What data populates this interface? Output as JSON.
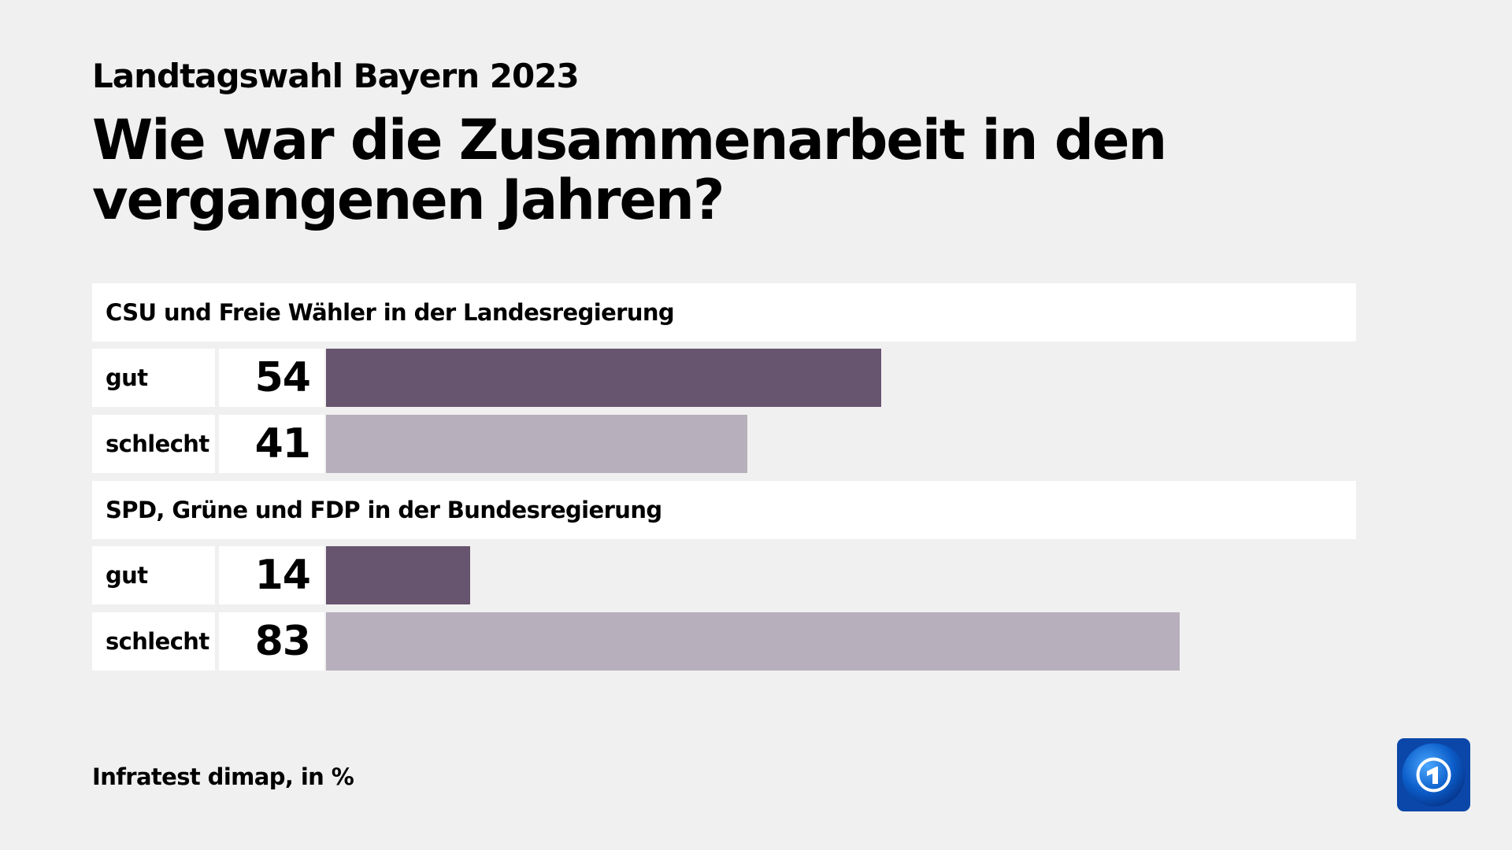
{
  "chart_data": {
    "type": "bar",
    "orientation": "horizontal",
    "subtitle": "Landtagswahl Bayern 2023",
    "title": "Wie war die Zusammenarbeit in den vergangenen Jahren?",
    "xlim": [
      0,
      100
    ],
    "groups": [
      {
        "label": "CSU und Freie Wähler in der Landesregierung",
        "rows": [
          {
            "label": "gut",
            "value": 54
          },
          {
            "label": "schlecht",
            "value": 41
          }
        ]
      },
      {
        "label": "SPD, Grüne und FDP in der Bundesregierung",
        "rows": [
          {
            "label": "gut",
            "value": 14
          },
          {
            "label": "schlecht",
            "value": 83
          }
        ]
      }
    ],
    "colors": {
      "gut": "#67546f",
      "schlecht": "#b7afbb"
    },
    "source": "Infratest dimap, in %"
  },
  "logo": {
    "icon": "ard-tagesschau-logo",
    "text": "1"
  }
}
